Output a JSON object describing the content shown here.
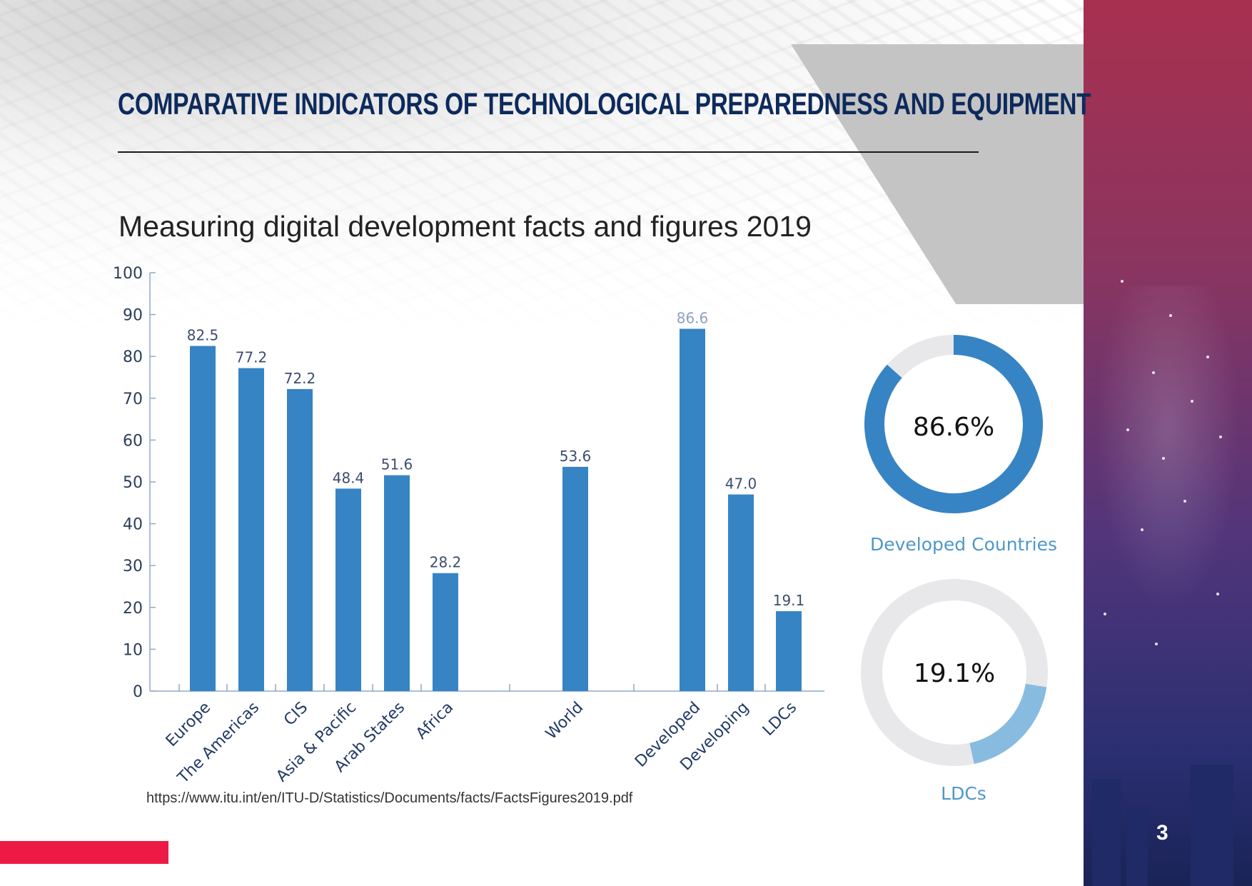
{
  "header": {
    "title": "COMPARATIVE INDICATORS OF TECHNOLOGICAL PREPAREDNESS AND EQUIPMENT",
    "subtitle": "Measuring digital development facts and figures 2019"
  },
  "footer": {
    "source": "https://www.itu.int/en/ITU-D/Statistics/Documents/facts/FactsFigures2019.pdf",
    "page_number": "3"
  },
  "colors": {
    "bar": "#3784c4",
    "axis": "#8fa8c8",
    "donut_developed": "#3784c4",
    "donut_ldc": "#88bbe0",
    "donut_track": "#e8e8ea",
    "title": "#0d2a5c",
    "accent_red": "#ee1a46"
  },
  "chart_data": [
    {
      "type": "bar",
      "categories": [
        "Europe",
        "The Americas",
        "CIS",
        "Asia & Pacific",
        "Arab States",
        "Africa",
        "World",
        "Developed",
        "Developing",
        "LDCs"
      ],
      "values": [
        82.5,
        77.2,
        72.2,
        48.4,
        51.6,
        28.2,
        53.6,
        86.6,
        47.0,
        19.1
      ],
      "value_labels": [
        "82.5",
        "77.2",
        "72.2",
        "48.4",
        "51.6",
        "28.2",
        "53.6",
        "86.6",
        "47.0",
        "19.1"
      ],
      "groups": [
        [
          0,
          1,
          2,
          3,
          4,
          5
        ],
        [
          6
        ],
        [
          7,
          8,
          9
        ]
      ],
      "ylim": [
        0,
        100
      ],
      "yticks": [
        "0",
        "10",
        "20",
        "30",
        "40",
        "50",
        "60",
        "70",
        "80",
        "90",
        "100"
      ],
      "grid": false
    },
    {
      "type": "pie",
      "variant": "donut",
      "center_label": "86.6%",
      "value": 86.6,
      "caption": "Developed Countries"
    },
    {
      "type": "pie",
      "variant": "donut",
      "center_label": "19.1%",
      "value": 19.1,
      "caption": "LDCs"
    }
  ]
}
